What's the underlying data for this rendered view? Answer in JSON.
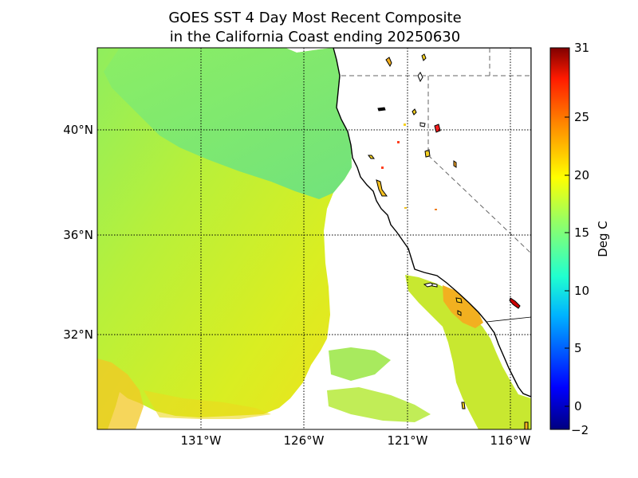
{
  "title": {
    "line1": "GOES SST 4 Day Most Recent Composite",
    "line2": "in the California Coast ending 20250630"
  },
  "map": {
    "region": "California Coast",
    "lat_labels": [
      "40°N",
      "36°N",
      "32°N"
    ],
    "lon_labels": [
      "131°W",
      "126°W",
      "121°W",
      "116°W"
    ],
    "grid": "dotted"
  },
  "colorbar": {
    "label": "Deg C",
    "ticks": [
      "31",
      "25",
      "20",
      "15",
      "10",
      "5",
      "0",
      "−2"
    ],
    "min": -2,
    "max": 31,
    "colormap": "jet"
  },
  "colors": {
    "land": "#ffffff",
    "warm_sst": "#f2e21a",
    "mid_sst": "#a8ee46",
    "cool_sst": "#6ee884",
    "coast": "#000000"
  }
}
